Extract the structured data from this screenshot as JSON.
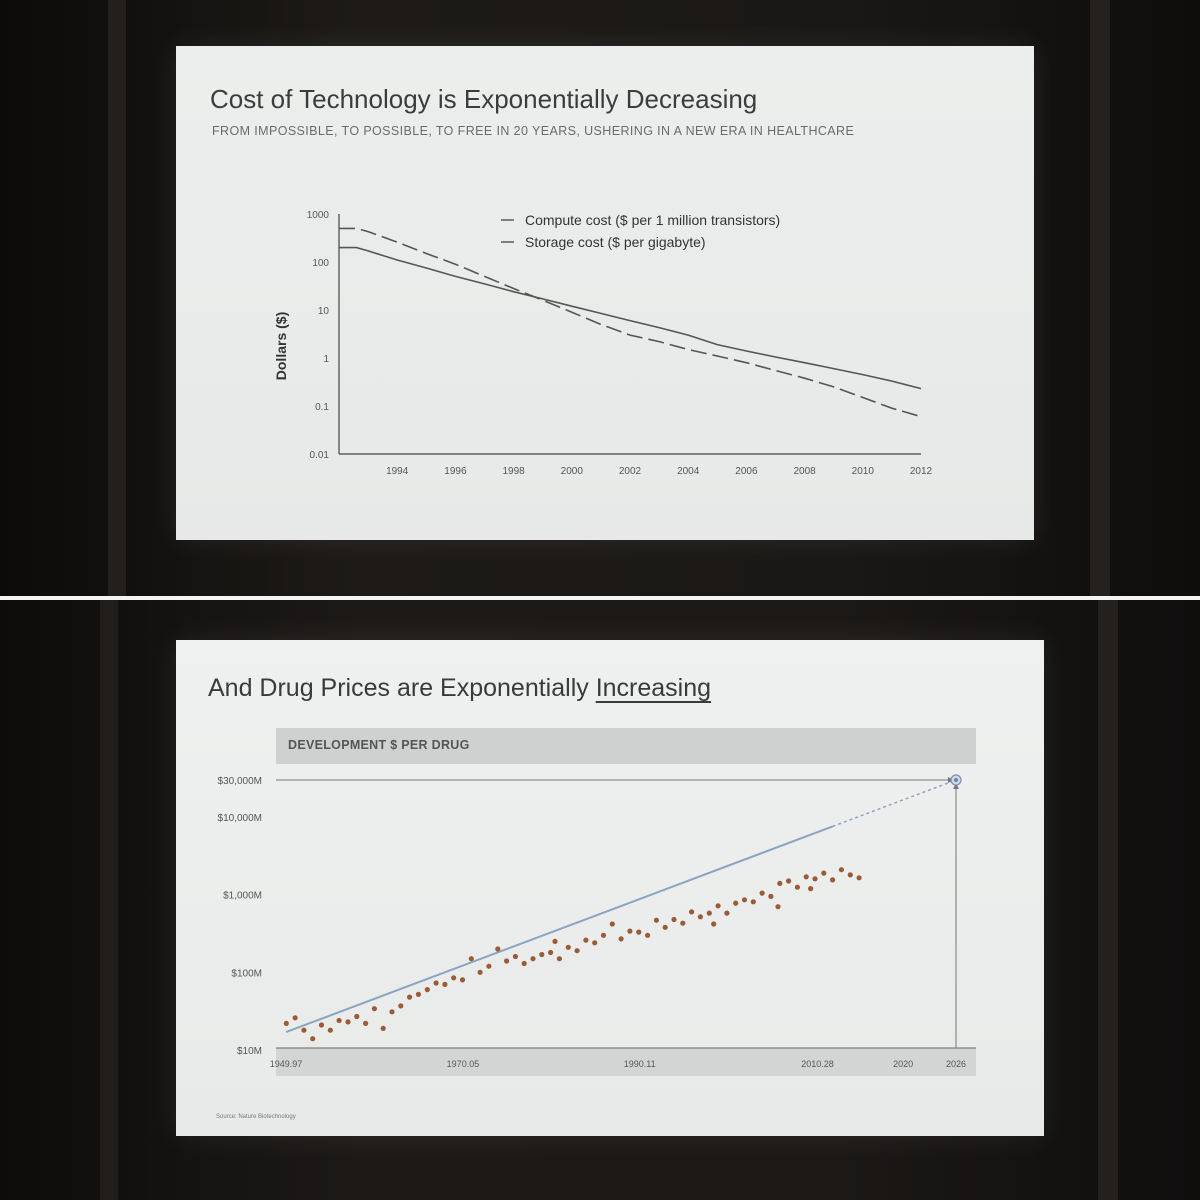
{
  "panels": [
    {
      "title": "Cost of Technology is Exponentially Decreasing",
      "subtitle": "FROM IMPOSSIBLE, TO POSSIBLE, TO FREE IN 20 YEARS, USHERING IN A NEW ERA IN HEALTHCARE"
    },
    {
      "title_plain": "And Drug Prices are Exponentially ",
      "title_emphasis": "Increasing",
      "band_label": "DEVELOPMENT $ PER DRUG",
      "source": "Source: Nature Biotechnology"
    }
  ],
  "chart_data": [
    {
      "type": "line",
      "scale": "log",
      "ylabel": "Dollars ($)",
      "xlabel": "",
      "yticks": [
        "1000",
        "100",
        "10",
        "1",
        "0.1",
        "0.01"
      ],
      "xticks": [
        "1994",
        "1996",
        "1998",
        "2000",
        "2002",
        "2004",
        "2006",
        "2008",
        "2010",
        "2012"
      ],
      "ylim": [
        0.01,
        1000
      ],
      "xlim": [
        1992,
        2012
      ],
      "legend_position": "top",
      "series": [
        {
          "name": "Compute cost ($ per 1 million transistors)",
          "style": "dashed",
          "x": [
            1992,
            1992.6,
            1993,
            1994,
            1995,
            1996,
            1997,
            1998,
            1999,
            2000,
            2001,
            2002,
            2003,
            2004,
            2005,
            2006,
            2007,
            2008,
            2009,
            2010,
            2011,
            2012
          ],
          "y": [
            500,
            500,
            430,
            260,
            150,
            90,
            50,
            28,
            16,
            9,
            5,
            3,
            2.2,
            1.5,
            1.1,
            0.8,
            0.55,
            0.38,
            0.25,
            0.15,
            0.09,
            0.06
          ]
        },
        {
          "name": "Storage cost ($ per gigabyte)",
          "style": "solid",
          "x": [
            1992,
            1992.6,
            1993,
            1994,
            1995,
            1996,
            1997,
            1998,
            1999,
            2000,
            2001,
            2002,
            2003,
            2004,
            2005,
            2006,
            2007,
            2008,
            2009,
            2010,
            2011,
            2012
          ],
          "y": [
            200,
            200,
            170,
            110,
            75,
            50,
            35,
            24,
            17,
            12,
            8.5,
            6,
            4.3,
            3,
            1.9,
            1.4,
            1.05,
            0.8,
            0.6,
            0.45,
            0.33,
            0.23
          ]
        }
      ]
    },
    {
      "type": "scatter",
      "scale": "log",
      "title": "DEVELOPMENT $ PER DRUG",
      "yticks": [
        "$30,000M",
        "$10,000M",
        "$1,000M",
        "$100M",
        "$10M"
      ],
      "xticks": [
        "1949.97",
        "1970.05",
        "1990.11",
        "2010.28",
        "2020",
        "2026"
      ],
      "ylim": [
        10,
        30000
      ],
      "xlim": [
        1949.97,
        2026
      ],
      "trend": {
        "x": [
          1949.97,
          2026
        ],
        "y": [
          17,
          30000
        ],
        "projection_from": 2012
      },
      "projection_point": {
        "x": 2026,
        "y": 30000
      },
      "points": [
        [
          1950.0,
          22
        ],
        [
          1951.0,
          26
        ],
        [
          1952.0,
          18
        ],
        [
          1953.0,
          14
        ],
        [
          1954.0,
          21
        ],
        [
          1955.0,
          18
        ],
        [
          1956.0,
          24
        ],
        [
          1957.0,
          23
        ],
        [
          1958.0,
          27
        ],
        [
          1959.0,
          22
        ],
        [
          1960.0,
          34
        ],
        [
          1961.0,
          19
        ],
        [
          1962.0,
          31
        ],
        [
          1963.0,
          37
        ],
        [
          1964.0,
          48
        ],
        [
          1965.0,
          52
        ],
        [
          1966.0,
          60
        ],
        [
          1967.0,
          73
        ],
        [
          1968.0,
          70
        ],
        [
          1969.0,
          85
        ],
        [
          1970.0,
          80
        ],
        [
          1971.0,
          150
        ],
        [
          1972.0,
          100
        ],
        [
          1973.0,
          120
        ],
        [
          1974.0,
          200
        ],
        [
          1975.0,
          140
        ],
        [
          1976.0,
          160
        ],
        [
          1977.0,
          130
        ],
        [
          1978.0,
          150
        ],
        [
          1979.0,
          170
        ],
        [
          1980.0,
          180
        ],
        [
          1981.0,
          150
        ],
        [
          1982.0,
          210
        ],
        [
          1983.0,
          190
        ],
        [
          1984.0,
          260
        ],
        [
          1985.0,
          240
        ],
        [
          1986.0,
          300
        ],
        [
          1987.0,
          420
        ],
        [
          1988.0,
          270
        ],
        [
          1989.0,
          340
        ],
        [
          1990.0,
          330
        ],
        [
          1991.0,
          300
        ],
        [
          1992.0,
          470
        ],
        [
          1993.0,
          380
        ],
        [
          1994.0,
          480
        ],
        [
          1995.0,
          430
        ],
        [
          1996.0,
          600
        ],
        [
          1997.0,
          520
        ],
        [
          1998.0,
          580
        ],
        [
          1999.0,
          720
        ],
        [
          2000.0,
          580
        ],
        [
          2001.0,
          780
        ],
        [
          2002.0,
          860
        ],
        [
          2003.0,
          810
        ],
        [
          2004.0,
          1050
        ],
        [
          2005.0,
          950
        ],
        [
          2006.0,
          1400
        ],
        [
          2007.0,
          1500
        ],
        [
          2008.0,
          1250
        ],
        [
          2009.0,
          1700
        ],
        [
          2010.0,
          1600
        ],
        [
          2011.0,
          1900
        ],
        [
          2012.0,
          1550
        ],
        [
          2013.0,
          2100
        ],
        [
          2014.0,
          1800
        ],
        [
          2015.0,
          1650
        ],
        [
          1998.5,
          420
        ],
        [
          2005.8,
          700
        ],
        [
          2009.5,
          1200
        ],
        [
          1980.5,
          250
        ]
      ]
    }
  ]
}
